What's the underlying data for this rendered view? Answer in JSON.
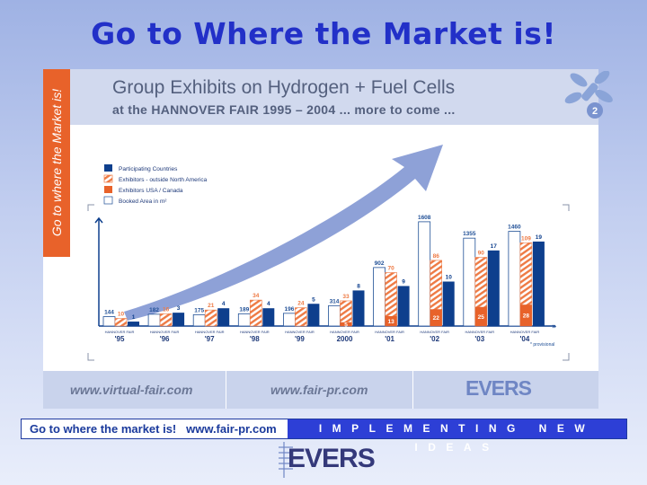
{
  "page_title": "Go to Where the Market is!",
  "slide": {
    "side_text": "Go to where the Market is!",
    "heading": "Group Exhibits on Hydrogen + Fuel Cells",
    "subheading": "at the HANNOVER FAIR 1995 – 2004 ... more to come ...",
    "logo_badge": "2",
    "footer": {
      "link1": "www.virtual-fair.com",
      "link2": "www.fair-pr.com",
      "brand": "EVERS"
    }
  },
  "bottom_bar": {
    "left": "Go to where the market is!   www.fair-pr.com",
    "right": "IMPLEMENTING NEW IDEAS"
  },
  "bottom_logo": "EVERS",
  "colors": {
    "title": "#2230c8",
    "countries": "#0e3f8d",
    "exhibitors_outside": "#ee7a44",
    "exhibitors_usa": "#e8622a",
    "booked_area_outline": "#1f4f96",
    "arrow": "#7a91d0"
  },
  "chart_data": {
    "type": "bar",
    "categories": [
      "HANNOVER FAIR '95",
      "HANNOVER FAIR '96",
      "HANNOVER FAIR '97",
      "HANNOVER FAIR '98",
      "HANNOVER FAIR '99",
      "HANNOVER FAIR 2000",
      "HANNOVER FAIR '01",
      "HANNOVER FAIR '02",
      "HANNOVER FAIR '03",
      "HANNOVER FAIR '04"
    ],
    "category_top": [
      "HANNOVER FAIR",
      "HANNOVER FAIR",
      "HANNOVER FAIR",
      "HANNOVER FAIR",
      "HANNOVER FAIR",
      "HANNOVER FAIR",
      "HANNOVER FAIR",
      "HANNOVER FAIR",
      "HANNOVER FAIR",
      "HANNOVER FAIR"
    ],
    "category_year": [
      "'95",
      "'96",
      "'97",
      "'98",
      "'99",
      "2000",
      "'01",
      "'02",
      "'03",
      "'04"
    ],
    "footnote": "* provisional",
    "series": [
      {
        "name": "Participating Countries",
        "values": [
          1,
          3,
          4,
          4,
          5,
          8,
          9,
          10,
          17,
          19
        ],
        "style": "solid-dark"
      },
      {
        "name": "Exhibitors - outside North America",
        "values": [
          10,
          16,
          21,
          34,
          24,
          33,
          70,
          86,
          90,
          109
        ],
        "style": "hatched"
      },
      {
        "name": "Exhibitors USA / Canada",
        "values": [
          null,
          null,
          null,
          null,
          null,
          5,
          13,
          22,
          25,
          28
        ],
        "style": "solid-orange"
      },
      {
        "name": "Booked Area in m²",
        "values": [
          144,
          182,
          175,
          189,
          196,
          314,
          902,
          1608,
          1355,
          1460
        ],
        "style": "outline"
      }
    ]
  }
}
